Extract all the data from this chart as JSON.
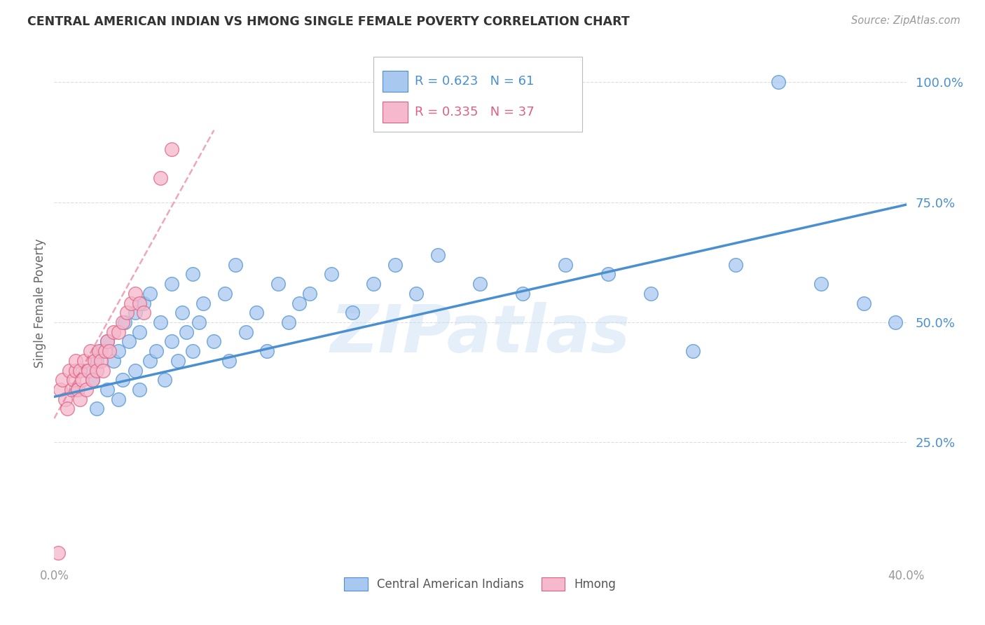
{
  "title": "CENTRAL AMERICAN INDIAN VS HMONG SINGLE FEMALE POVERTY CORRELATION CHART",
  "source": "Source: ZipAtlas.com",
  "ylabel": "Single Female Poverty",
  "legend_label_blue": "Central American Indians",
  "legend_label_pink": "Hmong",
  "blue_color": "#A8C8F0",
  "pink_color": "#F5B8CC",
  "blue_line_color": "#4A90D0",
  "pink_line_color": "#E06080",
  "watermark": "ZIPatlas",
  "blue_scatter_x": [
    0.01,
    0.015,
    0.018,
    0.02,
    0.02,
    0.022,
    0.025,
    0.025,
    0.028,
    0.03,
    0.03,
    0.032,
    0.033,
    0.035,
    0.038,
    0.038,
    0.04,
    0.04,
    0.042,
    0.045,
    0.045,
    0.048,
    0.05,
    0.052,
    0.055,
    0.055,
    0.058,
    0.06,
    0.062,
    0.065,
    0.065,
    0.068,
    0.07,
    0.075,
    0.08,
    0.082,
    0.085,
    0.09,
    0.095,
    0.1,
    0.105,
    0.11,
    0.115,
    0.12,
    0.13,
    0.14,
    0.15,
    0.16,
    0.17,
    0.18,
    0.2,
    0.22,
    0.24,
    0.26,
    0.28,
    0.3,
    0.32,
    0.34,
    0.36,
    0.38,
    0.395
  ],
  "blue_scatter_y": [
    0.36,
    0.4,
    0.38,
    0.32,
    0.42,
    0.44,
    0.36,
    0.46,
    0.42,
    0.34,
    0.44,
    0.38,
    0.5,
    0.46,
    0.4,
    0.52,
    0.36,
    0.48,
    0.54,
    0.42,
    0.56,
    0.44,
    0.5,
    0.38,
    0.46,
    0.58,
    0.42,
    0.52,
    0.48,
    0.44,
    0.6,
    0.5,
    0.54,
    0.46,
    0.56,
    0.42,
    0.62,
    0.48,
    0.52,
    0.44,
    0.58,
    0.5,
    0.54,
    0.56,
    0.6,
    0.52,
    0.58,
    0.62,
    0.56,
    0.64,
    0.58,
    0.56,
    0.62,
    0.6,
    0.56,
    0.44,
    0.62,
    1.0,
    0.58,
    0.54,
    0.5
  ],
  "pink_scatter_x": [
    0.002,
    0.003,
    0.004,
    0.005,
    0.006,
    0.007,
    0.008,
    0.009,
    0.01,
    0.01,
    0.011,
    0.012,
    0.012,
    0.013,
    0.014,
    0.015,
    0.016,
    0.017,
    0.018,
    0.019,
    0.02,
    0.021,
    0.022,
    0.023,
    0.024,
    0.025,
    0.026,
    0.028,
    0.03,
    0.032,
    0.034,
    0.036,
    0.038,
    0.04,
    0.042,
    0.05,
    0.055
  ],
  "pink_scatter_y": [
    0.02,
    0.36,
    0.38,
    0.34,
    0.32,
    0.4,
    0.36,
    0.38,
    0.4,
    0.42,
    0.36,
    0.34,
    0.4,
    0.38,
    0.42,
    0.36,
    0.4,
    0.44,
    0.38,
    0.42,
    0.4,
    0.44,
    0.42,
    0.4,
    0.44,
    0.46,
    0.44,
    0.48,
    0.48,
    0.5,
    0.52,
    0.54,
    0.56,
    0.54,
    0.52,
    0.8,
    0.86
  ],
  "xlim": [
    0.0,
    0.4
  ],
  "ylim": [
    0.0,
    1.08
  ],
  "ytick_vals": [
    0.25,
    0.5,
    0.75,
    1.0
  ],
  "ytick_labels": [
    "25.0%",
    "50.0%",
    "75.0%",
    "100.0%"
  ],
  "xtick_vals": [
    0.0,
    0.4
  ],
  "xtick_labels": [
    "0.0%",
    "40.0%"
  ],
  "grid_color": "#DDDDDD",
  "background_color": "#FFFFFF",
  "blue_line_x0": 0.0,
  "blue_line_x1": 0.4,
  "blue_line_y0": 0.345,
  "blue_line_y1": 0.745,
  "pink_line_x0": 0.0,
  "pink_line_x1": 0.075,
  "pink_line_y0": 0.3,
  "pink_line_y1": 0.9
}
